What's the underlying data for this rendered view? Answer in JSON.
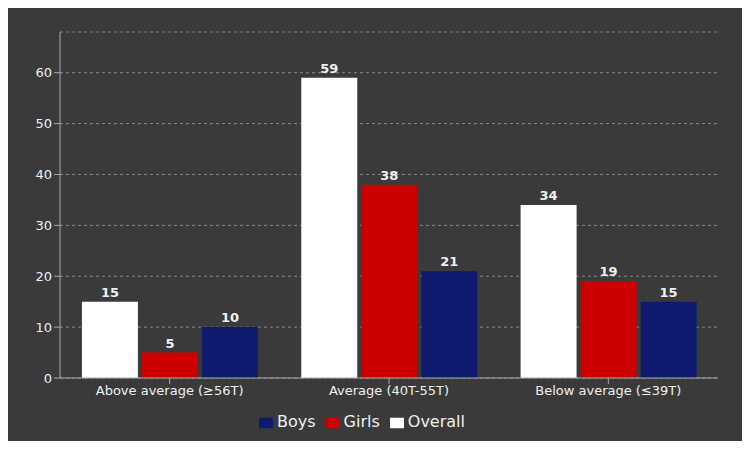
{
  "chart_data": {
    "type": "bar",
    "categories": [
      "Above average (≥56T)",
      "Average (40T-55T)",
      "Below average (≤39T)"
    ],
    "series": [
      {
        "name": "Overall",
        "color": "#ffffff",
        "values": [
          15,
          59,
          34
        ]
      },
      {
        "name": "Girls",
        "color": "#cc0000",
        "values": [
          5,
          38,
          19
        ]
      },
      {
        "name": "Boys",
        "color": "#0d1a6e",
        "values": [
          10,
          21,
          15
        ]
      }
    ],
    "ylim": [
      0,
      68
    ],
    "yticks": [
      0,
      10,
      20,
      30,
      40,
      50,
      60
    ],
    "grid": true,
    "legend": "bottom",
    "data_labels": true
  }
}
